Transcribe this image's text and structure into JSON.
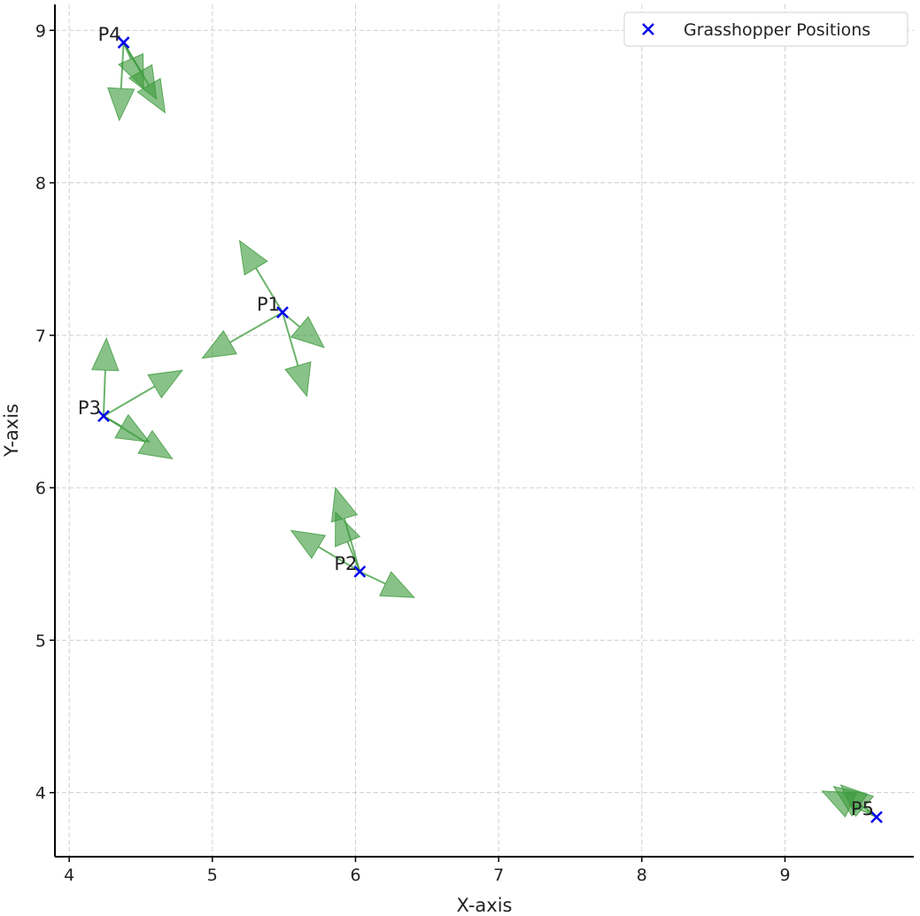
{
  "chart_data": {
    "type": "scatter",
    "xlabel": "X-axis",
    "ylabel": "Y-axis",
    "xlim": [
      3.9,
      9.9
    ],
    "ylim": [
      3.58,
      9.17
    ],
    "xticks": [
      4,
      5,
      6,
      7,
      8,
      9
    ],
    "yticks": [
      4,
      5,
      6,
      7,
      8,
      9
    ],
    "grid": true,
    "legend": {
      "position": "top-right",
      "entries": [
        "Grasshopper Positions"
      ]
    },
    "colors": {
      "marker": "#0000ee",
      "arrow": "#3a9a3a"
    },
    "points": [
      {
        "label": "P1",
        "x": 5.49,
        "y": 7.15,
        "arrows_to": [
          [
            5.19,
            7.62
          ],
          [
            5.78,
            6.92
          ],
          [
            5.66,
            6.6
          ],
          [
            4.93,
            6.85
          ]
        ]
      },
      {
        "label": "P2",
        "x": 6.03,
        "y": 5.45,
        "arrows_to": [
          [
            5.86,
            6.0
          ],
          [
            5.86,
            5.84
          ],
          [
            5.55,
            5.72
          ],
          [
            6.41,
            5.28
          ]
        ]
      },
      {
        "label": "P3",
        "x": 4.24,
        "y": 6.47,
        "arrows_to": [
          [
            4.26,
            6.98
          ],
          [
            4.79,
            6.77
          ],
          [
            4.56,
            6.3
          ],
          [
            4.72,
            6.19
          ]
        ]
      },
      {
        "label": "P4",
        "x": 4.38,
        "y": 8.92,
        "arrows_to": [
          [
            4.35,
            8.41
          ],
          [
            4.67,
            8.46
          ],
          [
            4.61,
            8.55
          ],
          [
            4.52,
            8.62
          ]
        ]
      },
      {
        "label": "P5",
        "x": 9.64,
        "y": 3.84,
        "arrows_to": [
          [
            9.26,
            4.01
          ],
          [
            9.34,
            4.04
          ],
          [
            9.39,
            4.05
          ]
        ]
      }
    ]
  }
}
